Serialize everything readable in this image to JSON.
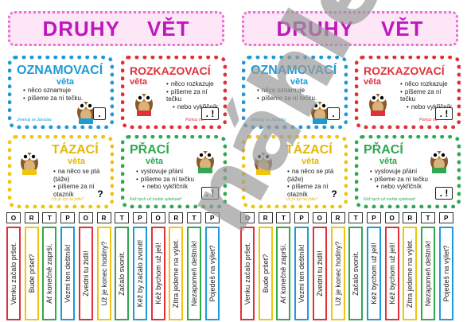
{
  "colors": {
    "blue": "#1e9ad6",
    "red": "#e0313a",
    "yellow": "#f1c40f",
    "green": "#2fa84f",
    "pink": "#ea6fd3",
    "purple": "#c016c0",
    "watermark": "#9a9a9a"
  },
  "title_part1": "DRUHY",
  "title_part2": "VĚT",
  "cards": {
    "oznam": {
      "head": "OZNAMOVACÍ",
      "sub": "věta",
      "bullets": [
        "něco oznamuje",
        "píšeme za ní tečku."
      ],
      "note": "Jmenuji se Jaroslav.",
      "punct": "."
    },
    "rozk": {
      "head": "ROZKAZOVACÍ",
      "sub": "věta",
      "bullets": [
        "něco rozkazuje",
        "píšeme za ní tečku",
        "nebo vykřičník"
      ],
      "note": "Pomoz mi!",
      "punct": ". !"
    },
    "taz": {
      "head": "TÁZACÍ",
      "sub": "věta",
      "bullets": [
        "na něco se ptá (táže)",
        "píšeme za ní otazník"
      ],
      "note": "Už jsi byl na jídle?",
      "punct": "?"
    },
    "prac": {
      "head": "PŘACÍ",
      "sub": "věta",
      "bullets": [
        "vyslovuje přání",
        "píšeme za ní tečku",
        "nebo vykřičník"
      ],
      "note": "Kéž bych už mohla vyletnout!",
      "punct": ". !"
    }
  },
  "strips_left": [
    {
      "letter": "O",
      "text": "Venku začalo pršet."
    },
    {
      "letter": "R",
      "text": "Bude pršet?"
    },
    {
      "letter": "T",
      "text": "Ať konečně zaprší."
    },
    {
      "letter": "P",
      "text": "Vezmi ten deštník!"
    },
    {
      "letter": "O",
      "text": "Zvedni tu židli!"
    },
    {
      "letter": "R",
      "text": "Už je konec hodiny?"
    },
    {
      "letter": "T",
      "text": "Začalo svonit."
    },
    {
      "letter": "P",
      "text": "Kéž by začalo zvonit!"
    },
    {
      "letter": "O",
      "text": "Kéž bychom už jeli!"
    },
    {
      "letter": "R",
      "text": "Zítra jedeme na výlet."
    },
    {
      "letter": "T",
      "text": "Nezapomeň deštník!"
    },
    {
      "letter": "P",
      "text": "Pojedeš na výlet?"
    }
  ],
  "strips_right": [
    {
      "letter": "O",
      "text": "Venku začalo pršet."
    },
    {
      "letter": "R",
      "text": "Bude pršet?"
    },
    {
      "letter": "T",
      "text": "Ať konečně zaprší."
    },
    {
      "letter": "P",
      "text": "Vezmi ten deštník!"
    },
    {
      "letter": "O",
      "text": "Zvedni tu židli!"
    },
    {
      "letter": "R",
      "text": "Už je konec hodiny?"
    },
    {
      "letter": "T",
      "text": "Začalo svonit."
    },
    {
      "letter": "P",
      "text": "Kéž bychom už jeli!"
    },
    {
      "letter": "O",
      "text": "Kéž bychom už jeli!"
    },
    {
      "letter": "R",
      "text": "Zítra jedeme na výlet."
    },
    {
      "letter": "T",
      "text": "Nezapomeň deštník!"
    },
    {
      "letter": "P",
      "text": "Pojedeš na výlet?"
    }
  ],
  "watermark_text": "náhled"
}
